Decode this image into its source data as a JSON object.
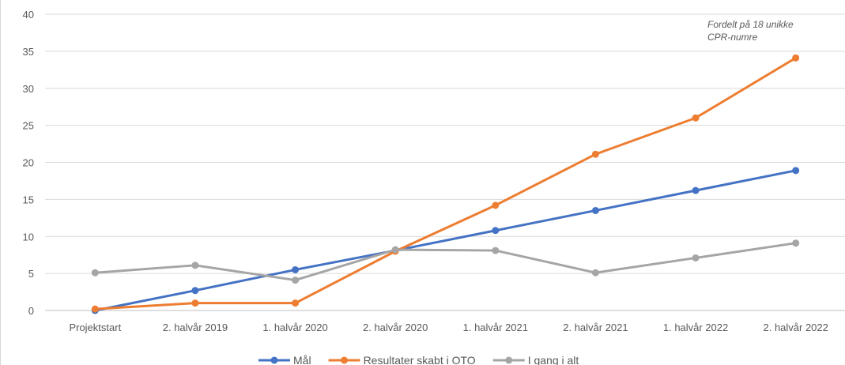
{
  "chart_data": {
    "type": "line",
    "categories": [
      "Projektstart",
      "2. halvår 2019",
      "1. halvår 2020",
      "2. halvår 2020",
      "1. halvår 2021",
      "2. halvår 2021",
      "1. halvår 2022",
      "2. halvår 2022"
    ],
    "series": [
      {
        "name": "Mål",
        "color": "#4472c4",
        "values": [
          0,
          2.7,
          5.5,
          8.1,
          10.8,
          13.5,
          16.2,
          18.9
        ]
      },
      {
        "name": "Resultater skabt i OTO",
        "color": "#ed7d31",
        "values": [
          0.2,
          1,
          1,
          8,
          14.2,
          21.1,
          26,
          34.1
        ]
      },
      {
        "name": "I gang i alt",
        "color": "#a5a5a5",
        "values": [
          5.1,
          6.1,
          4.1,
          8.2,
          8.1,
          5.1,
          7.1,
          9.1
        ]
      }
    ],
    "yticks": [
      "0",
      "5",
      "10",
      "15",
      "20",
      "25",
      "30",
      "35",
      "40"
    ],
    "ylim": [
      0,
      40
    ],
    "grid": true,
    "legend_position": "bottom",
    "annotation": "Fordelt på 18 unikke CPR-numre"
  }
}
